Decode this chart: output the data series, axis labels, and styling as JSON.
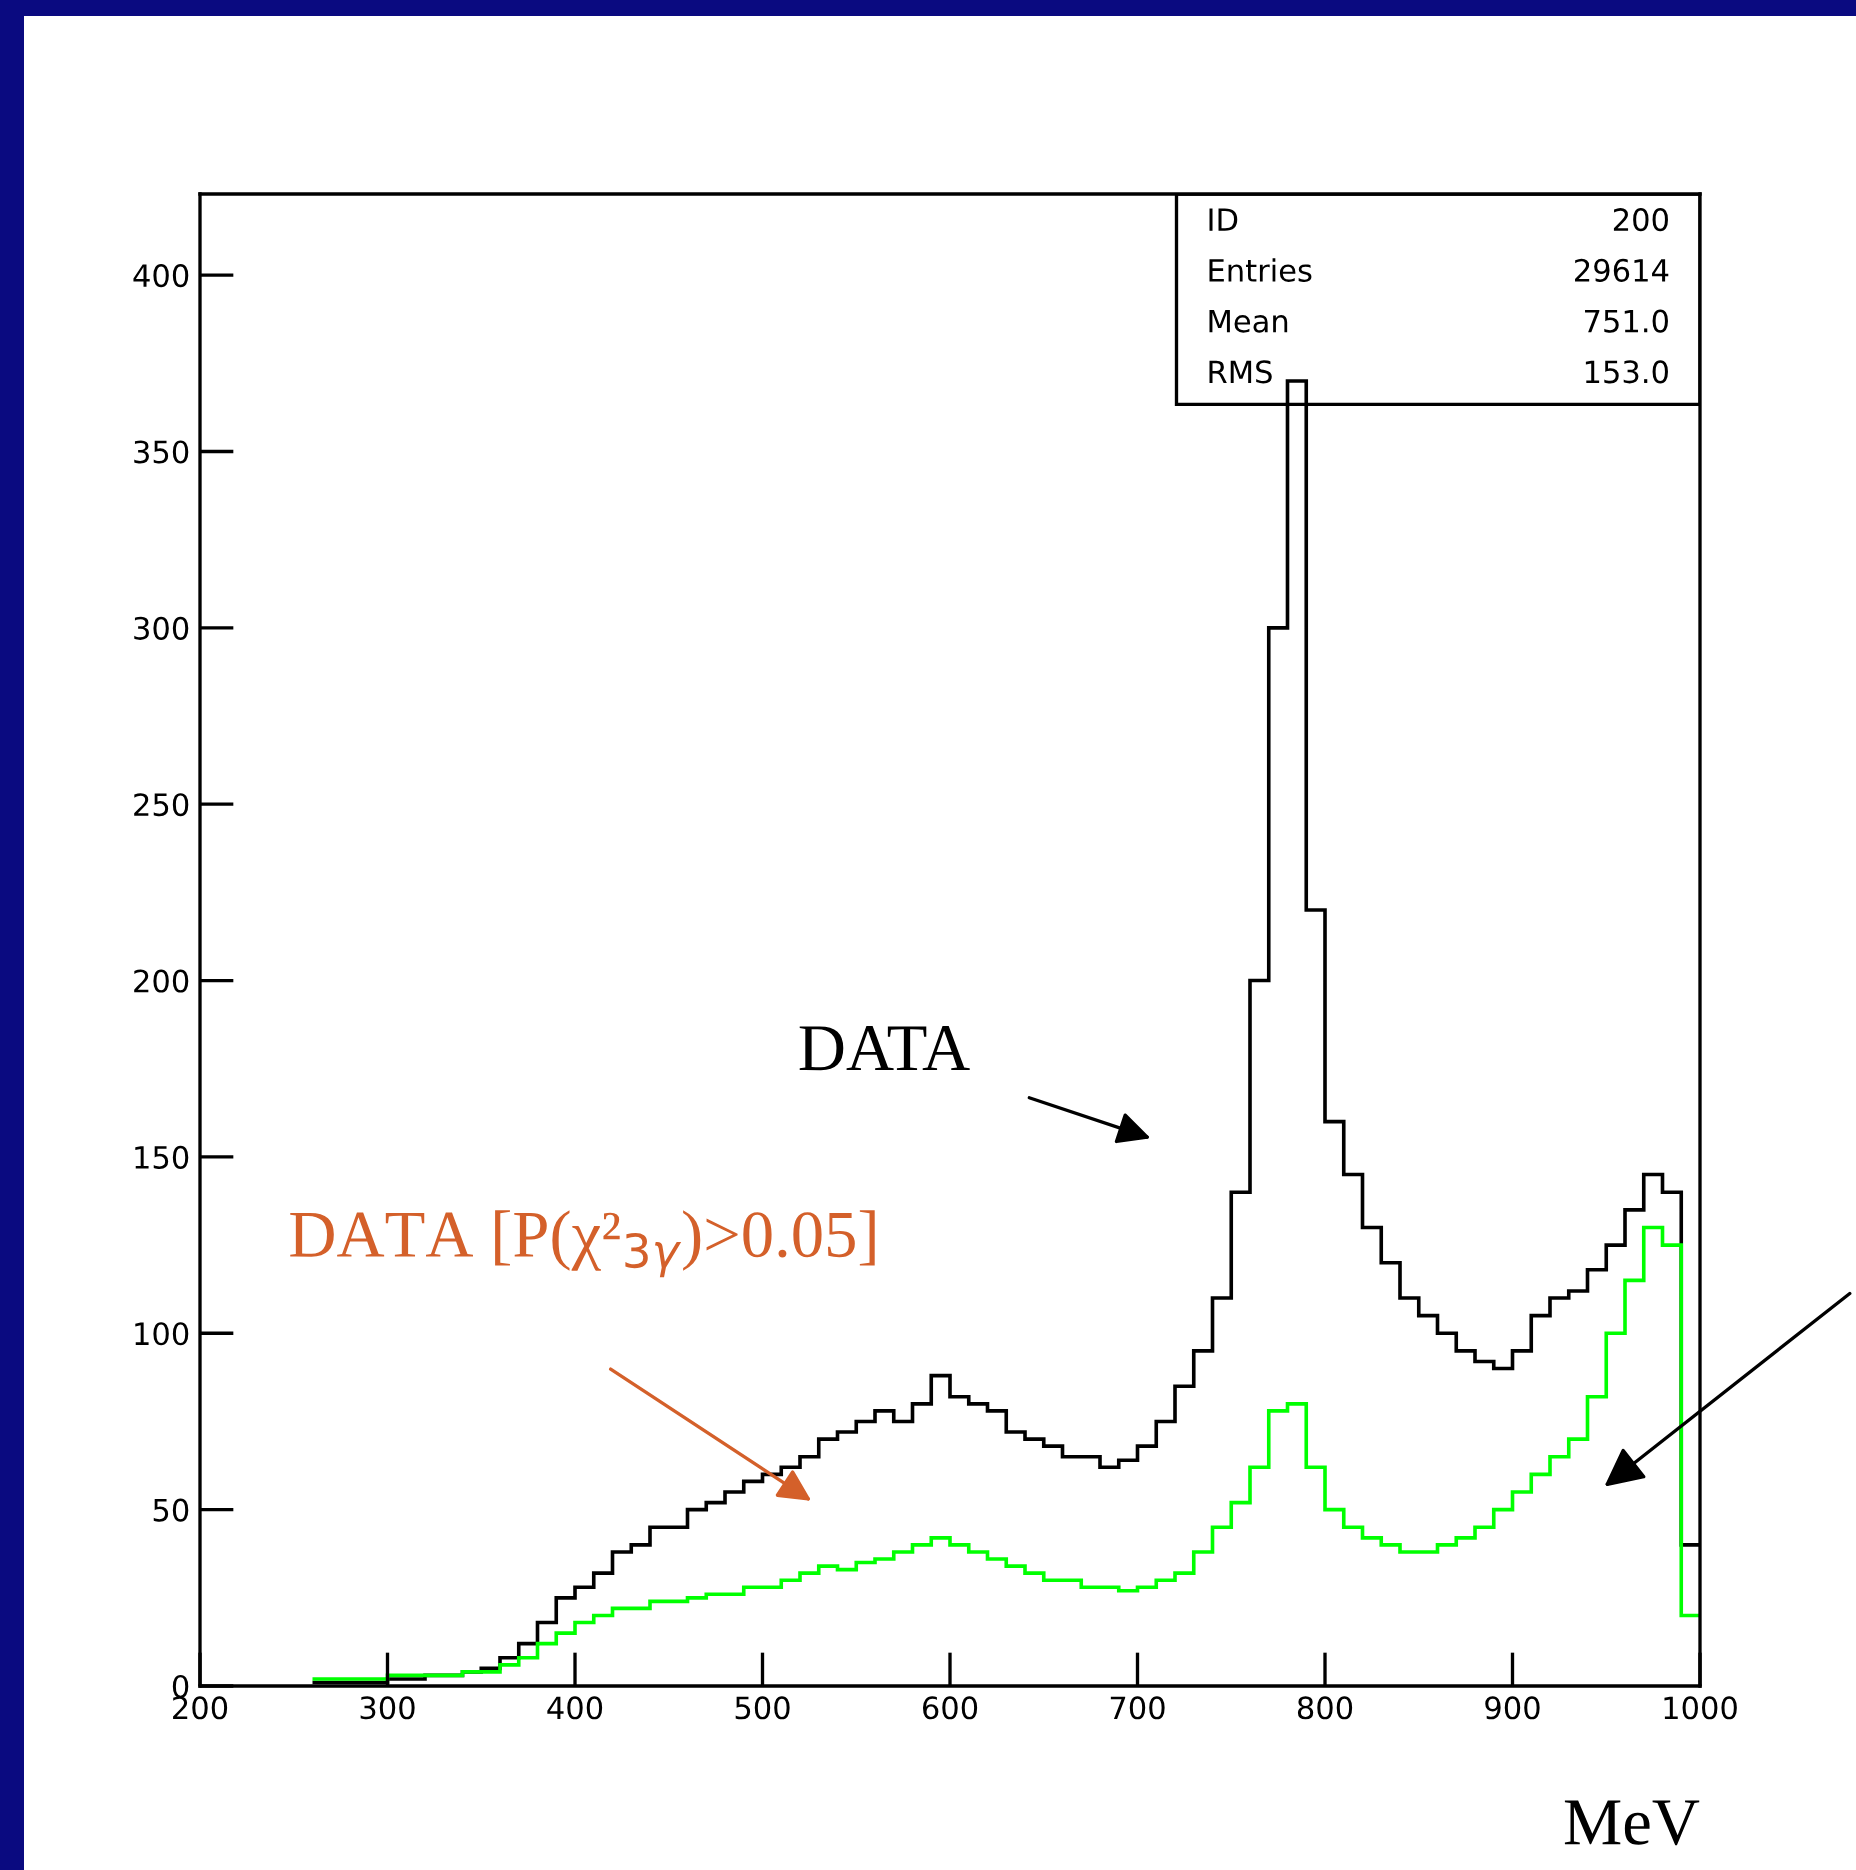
{
  "chart_data": {
    "type": "histogram",
    "xlabel": "MeV",
    "bins": [
      260,
      270,
      280,
      290,
      300,
      310,
      320,
      330,
      340,
      350,
      360,
      370,
      380,
      390,
      400,
      410,
      420,
      430,
      440,
      450,
      460,
      470,
      480,
      490,
      500,
      510,
      520,
      530,
      540,
      550,
      560,
      570,
      580,
      590,
      600,
      610,
      620,
      630,
      640,
      650,
      660,
      670,
      680,
      690,
      700,
      710,
      720,
      730,
      740,
      750,
      760,
      770,
      780,
      790,
      800,
      810,
      820,
      830,
      840,
      850,
      860,
      870,
      880,
      890,
      900,
      910,
      920,
      930,
      940,
      950,
      960,
      970,
      980,
      990,
      1000
    ],
    "series": [
      {
        "color": "#000000",
        "values": [
          1,
          1,
          1,
          1,
          2,
          2,
          3,
          3,
          4,
          5,
          8,
          12,
          18,
          25,
          28,
          32,
          38,
          40,
          45,
          45,
          50,
          52,
          55,
          58,
          60,
          62,
          65,
          70,
          72,
          75,
          78,
          75,
          80,
          88,
          82,
          80,
          78,
          72,
          70,
          68,
          65,
          65,
          62,
          64,
          68,
          75,
          85,
          95,
          110,
          140,
          200,
          300,
          370,
          220,
          160,
          145,
          130,
          120,
          110,
          105,
          100,
          95,
          92,
          90,
          95,
          105,
          110,
          112,
          118,
          125,
          135,
          145,
          140,
          40
        ]
      },
      {
        "color": "#00ff00",
        "values": [
          2,
          2,
          2,
          2,
          3,
          3,
          3,
          3,
          4,
          4,
          6,
          8,
          12,
          15,
          18,
          20,
          22,
          22,
          24,
          24,
          25,
          26,
          26,
          28,
          28,
          30,
          32,
          34,
          33,
          35,
          36,
          38,
          40,
          42,
          40,
          38,
          36,
          34,
          32,
          30,
          30,
          28,
          28,
          27,
          28,
          30,
          32,
          38,
          45,
          52,
          62,
          78,
          80,
          62,
          50,
          45,
          42,
          40,
          38,
          38,
          40,
          42,
          45,
          50,
          55,
          60,
          65,
          70,
          82,
          100,
          115,
          130,
          125,
          20
        ]
      }
    ],
    "xlim": [
      200,
      1000
    ],
    "ylim": [
      0,
      423
    ],
    "xticks": [
      200,
      300,
      400,
      500,
      600,
      700,
      800,
      900,
      1000
    ],
    "yticks": [
      0,
      50,
      100,
      150,
      200,
      250,
      300,
      350,
      400
    ],
    "annotations": [
      "DATA",
      "DATA [P(χ²$_{3γ}$)>0.05]",
      "ID",
      "200",
      "Entries",
      "29614",
      "Mean",
      "751.0",
      "RMS",
      "153.0"
    ]
  }
}
